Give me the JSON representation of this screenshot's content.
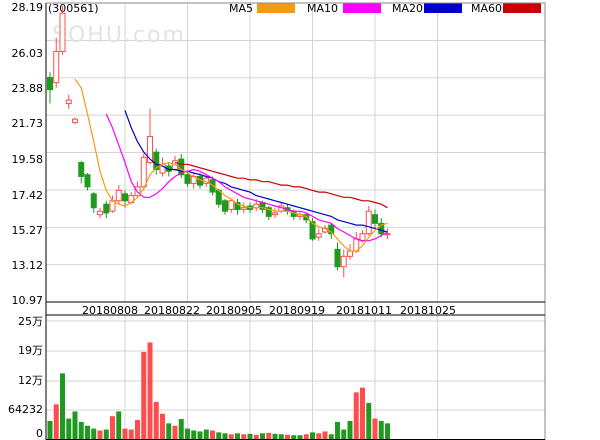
{
  "stock_code": "(300561)",
  "watermark": "SOHU.com",
  "colors": {
    "up": "#ff4d4d",
    "down": "#1f9a1f",
    "ma5": "#f39c12",
    "ma10": "#ff00ff",
    "ma20": "#0000cc",
    "ma60": "#cc0000",
    "grid": "#d4d4d4",
    "axis": "#000000"
  },
  "chart_data": [
    {
      "type": "candlestick",
      "legend": [
        {
          "name": "MA5",
          "color": "#f39c12"
        },
        {
          "name": "MA10",
          "color": "#ff00ff"
        },
        {
          "name": "MA20",
          "color": "#0000cc"
        },
        {
          "name": "MA60",
          "color": "#cc0000"
        }
      ],
      "y_ticks": [
        "28.19",
        "26.03",
        "23.88",
        "21.73",
        "19.58",
        "17.42",
        "15.27",
        "13.12",
        "10.97"
      ],
      "ylim": [
        10.97,
        28.19
      ],
      "x_tick_labels": [
        {
          "index": 12,
          "label": "20180808"
        },
        {
          "index": 22,
          "label": "20180822"
        },
        {
          "index": 32,
          "label": "20180905"
        },
        {
          "index": 42,
          "label": "20180919"
        },
        {
          "index": 52,
          "label": "20181011"
        },
        {
          "index": 62,
          "label": "20181025"
        }
      ],
      "candles": [
        [
          23.9,
          23.2,
          24.2,
          22.4
        ],
        [
          23.6,
          25.4,
          26.2,
          23.3
        ],
        [
          25.4,
          27.6,
          28.0,
          25.2
        ],
        [
          22.4,
          22.6,
          22.9,
          22.1
        ],
        [
          21.3,
          21.5,
          21.6,
          21.2
        ],
        [
          19.0,
          18.2,
          19.1,
          17.8
        ],
        [
          18.3,
          17.6,
          18.4,
          17.4
        ],
        [
          17.2,
          16.4,
          17.3,
          16.1
        ],
        [
          16.0,
          16.2,
          16.4,
          15.8
        ],
        [
          16.6,
          16.1,
          16.8,
          15.8
        ],
        [
          16.2,
          16.8,
          17.1,
          16.1
        ],
        [
          16.8,
          17.4,
          17.7,
          16.6
        ],
        [
          17.2,
          16.8,
          17.4,
          16.4
        ],
        [
          16.7,
          17.1,
          17.3,
          16.6
        ],
        [
          17.1,
          17.6,
          17.9,
          17.0
        ],
        [
          17.6,
          19.3,
          19.5,
          17.4
        ],
        [
          19.0,
          20.5,
          22.1,
          18.9
        ],
        [
          19.6,
          18.6,
          19.8,
          18.3
        ],
        [
          18.4,
          18.9,
          19.3,
          18.2
        ],
        [
          18.8,
          18.5,
          19.0,
          18.2
        ],
        [
          18.6,
          19.1,
          19.4,
          18.5
        ],
        [
          19.2,
          18.3,
          19.5,
          18.1
        ],
        [
          18.3,
          17.8,
          18.5,
          17.6
        ],
        [
          17.8,
          18.2,
          18.4,
          17.5
        ],
        [
          18.2,
          17.7,
          18.4,
          17.5
        ],
        [
          17.8,
          18.1,
          18.2,
          17.6
        ],
        [
          18.0,
          17.3,
          18.2,
          17.1
        ],
        [
          17.4,
          16.6,
          17.5,
          16.4
        ],
        [
          16.8,
          16.2,
          16.9,
          16.0
        ],
        [
          16.3,
          16.8,
          16.9,
          16.1
        ],
        [
          16.7,
          16.3,
          16.9,
          16.0
        ],
        [
          16.3,
          16.4,
          16.7,
          16.1
        ],
        [
          16.5,
          16.3,
          16.7,
          16.1
        ],
        [
          16.4,
          16.6,
          16.9,
          16.2
        ],
        [
          16.7,
          16.3,
          16.8,
          16.1
        ],
        [
          16.4,
          15.9,
          16.5,
          15.7
        ],
        [
          16.0,
          16.1,
          16.4,
          15.8
        ],
        [
          16.2,
          16.5,
          16.7,
          16.1
        ],
        [
          16.4,
          16.2,
          16.6,
          16.0
        ],
        [
          16.2,
          15.9,
          16.3,
          15.7
        ],
        [
          15.9,
          16.0,
          16.2,
          15.7
        ],
        [
          16.0,
          15.7,
          16.1,
          15.5
        ],
        [
          15.6,
          14.6,
          15.8,
          14.5
        ],
        [
          14.7,
          14.9,
          15.2,
          14.5
        ],
        [
          15.0,
          15.2,
          15.4,
          14.9
        ],
        [
          15.4,
          14.9,
          15.5,
          14.6
        ],
        [
          14.0,
          13.0,
          14.4,
          12.8
        ],
        [
          13.0,
          13.6,
          14.0,
          12.4
        ],
        [
          13.6,
          13.9,
          14.3,
          13.4
        ],
        [
          13.9,
          14.6,
          15.0,
          13.8
        ],
        [
          14.5,
          14.9,
          15.1,
          14.4
        ],
        [
          14.9,
          16.2,
          16.5,
          14.8
        ],
        [
          16.0,
          15.5,
          16.3,
          15.2
        ],
        [
          15.5,
          14.9,
          15.8,
          14.7
        ],
        [
          14.9,
          14.9,
          15.2,
          14.6
        ]
      ],
      "volume_ticks": [
        "25万",
        "19万",
        "12万",
        "64232",
        "0"
      ],
      "volume_max": 250000,
      "volumes": [
        {
          "v": 40000,
          "up": false
        },
        {
          "v": 75000,
          "up": true
        },
        {
          "v": 140000,
          "up": false
        },
        {
          "v": 45000,
          "up": false
        },
        {
          "v": 60000,
          "up": false
        },
        {
          "v": 38000,
          "up": false
        },
        {
          "v": 30000,
          "up": false
        },
        {
          "v": 24000,
          "up": false
        },
        {
          "v": 20000,
          "up": true
        },
        {
          "v": 22000,
          "up": false
        },
        {
          "v": 50000,
          "up": true
        },
        {
          "v": 60000,
          "up": false
        },
        {
          "v": 24000,
          "up": true
        },
        {
          "v": 22000,
          "up": true
        },
        {
          "v": 42000,
          "up": true
        },
        {
          "v": 185000,
          "up": true
        },
        {
          "v": 205000,
          "up": true
        },
        {
          "v": 80000,
          "up": true
        },
        {
          "v": 55000,
          "up": true
        },
        {
          "v": 35000,
          "up": false
        },
        {
          "v": 30000,
          "up": true
        },
        {
          "v": 44000,
          "up": false
        },
        {
          "v": 24000,
          "up": false
        },
        {
          "v": 20000,
          "up": false
        },
        {
          "v": 18000,
          "up": false
        },
        {
          "v": 22000,
          "up": false
        },
        {
          "v": 20000,
          "up": true
        },
        {
          "v": 16000,
          "up": false
        },
        {
          "v": 14000,
          "up": false
        },
        {
          "v": 12000,
          "up": true
        },
        {
          "v": 14000,
          "up": false
        },
        {
          "v": 12000,
          "up": true
        },
        {
          "v": 13000,
          "up": false
        },
        {
          "v": 11000,
          "up": true
        },
        {
          "v": 14000,
          "up": false
        },
        {
          "v": 15000,
          "up": true
        },
        {
          "v": 13000,
          "up": false
        },
        {
          "v": 12000,
          "up": false
        },
        {
          "v": 11000,
          "up": true
        },
        {
          "v": 10000,
          "up": false
        },
        {
          "v": 10000,
          "up": false
        },
        {
          "v": 12000,
          "up": true
        },
        {
          "v": 16000,
          "up": false
        },
        {
          "v": 14000,
          "up": true
        },
        {
          "v": 18000,
          "up": true
        },
        {
          "v": 12000,
          "up": false
        },
        {
          "v": 38000,
          "up": false
        },
        {
          "v": 22000,
          "up": false
        },
        {
          "v": 40000,
          "up": false
        },
        {
          "v": 100000,
          "up": true
        },
        {
          "v": 110000,
          "up": true
        },
        {
          "v": 78000,
          "up": false
        },
        {
          "v": 45000,
          "up": true
        },
        {
          "v": 40000,
          "up": false
        },
        {
          "v": 35000,
          "up": false
        }
      ],
      "ma5": [
        null,
        null,
        null,
        null,
        23.8,
        23.3,
        21.8,
        20.2,
        18.5,
        17.4,
        16.8,
        16.6,
        16.5,
        16.7,
        17.0,
        17.5,
        18.3,
        18.7,
        18.9,
        19.0,
        18.9,
        18.6,
        18.4,
        18.2,
        18.0,
        17.9,
        17.7,
        17.4,
        17.1,
        16.9,
        16.6,
        16.5,
        16.4,
        16.4,
        16.4,
        16.3,
        16.2,
        16.2,
        16.2,
        16.1,
        16.0,
        15.9,
        15.5,
        15.3,
        15.2,
        15.0,
        14.6,
        14.2,
        13.9,
        13.9,
        14.2,
        14.7,
        15.1,
        15.4,
        15.5
      ],
      "ma10": [
        null,
        null,
        null,
        null,
        null,
        null,
        null,
        null,
        null,
        21.8,
        21.0,
        20.0,
        19.0,
        17.9,
        17.3,
        17.0,
        17.0,
        17.2,
        17.5,
        17.9,
        18.2,
        18.4,
        18.5,
        18.6,
        18.5,
        18.3,
        18.1,
        17.9,
        17.6,
        17.4,
        17.2,
        17.0,
        16.9,
        16.8,
        16.7,
        16.6,
        16.5,
        16.4,
        16.3,
        16.2,
        16.2,
        16.1,
        15.9,
        15.7,
        15.6,
        15.5,
        15.2,
        15.0,
        14.8,
        14.6,
        14.5,
        14.5,
        14.6,
        14.8,
        15.0
      ],
      "ma20": [
        null,
        null,
        null,
        null,
        null,
        null,
        null,
        null,
        null,
        null,
        null,
        null,
        22.0,
        21.0,
        20.2,
        19.6,
        19.2,
        18.9,
        18.8,
        18.6,
        18.6,
        18.5,
        18.5,
        18.4,
        18.3,
        18.2,
        18.1,
        17.9,
        17.8,
        17.6,
        17.5,
        17.4,
        17.3,
        17.1,
        17.0,
        16.9,
        16.8,
        16.7,
        16.6,
        16.5,
        16.4,
        16.3,
        16.2,
        16.1,
        16.0,
        15.9,
        15.7,
        15.6,
        15.5,
        15.4,
        15.4,
        15.3,
        15.2,
        15.1,
        15.0
      ],
      "ma60": [
        null,
        null,
        null,
        null,
        null,
        null,
        null,
        null,
        null,
        null,
        null,
        null,
        null,
        null,
        null,
        null,
        null,
        null,
        null,
        null,
        19.0,
        18.9,
        18.9,
        18.8,
        18.7,
        18.6,
        18.5,
        18.4,
        18.3,
        18.2,
        18.1,
        18.1,
        18.0,
        18.0,
        17.9,
        17.9,
        17.8,
        17.7,
        17.7,
        17.6,
        17.6,
        17.5,
        17.4,
        17.3,
        17.3,
        17.2,
        17.1,
        17.0,
        17.0,
        16.9,
        16.8,
        16.8,
        16.7,
        16.6,
        16.4
      ]
    }
  ]
}
